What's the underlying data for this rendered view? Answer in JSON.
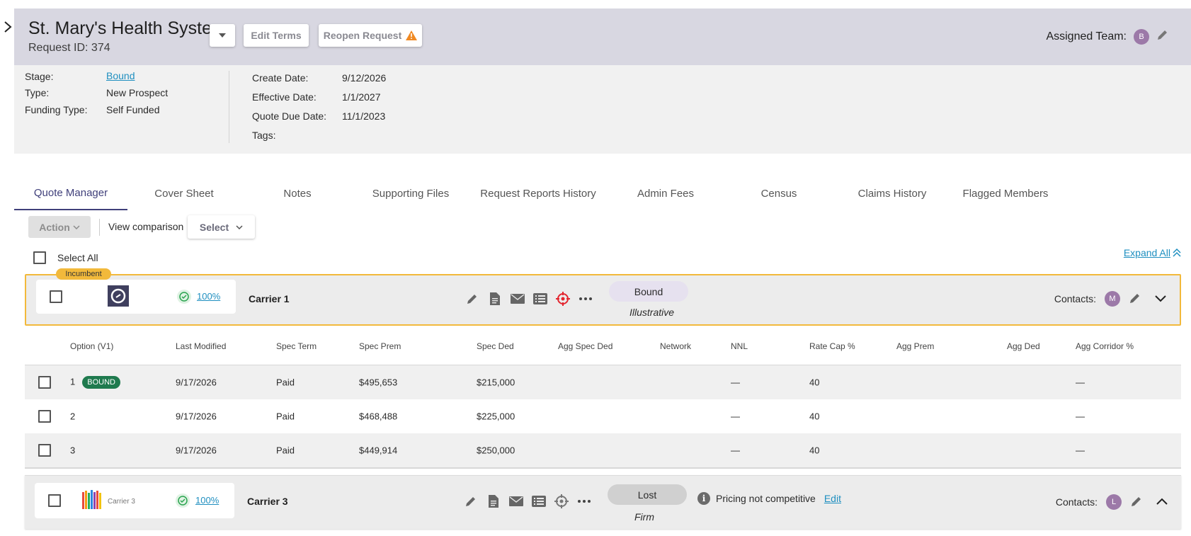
{
  "header": {
    "title": "St. Mary's Health System",
    "request_id": "Request ID: 374",
    "edit_terms": "Edit Terms",
    "reopen_request": "Reopen Request",
    "assigned_label": "Assigned Team:",
    "assigned_avatar": "B"
  },
  "info": {
    "stage_label": "Stage:",
    "stage_value": "Bound",
    "type_label": "Type:",
    "type_value": "New Prospect",
    "funding_label": "Funding Type:",
    "funding_value": "Self Funded",
    "create_label": "Create Date:",
    "create_value": "9/12/2026",
    "effective_label": "Effective Date:",
    "effective_value": "1/1/2027",
    "due_label": "Quote Due Date:",
    "due_value": "11/1/2023",
    "tags_label": "Tags:"
  },
  "tabs": [
    {
      "label": "Quote Manager"
    },
    {
      "label": "Cover Sheet"
    },
    {
      "label": "Notes"
    },
    {
      "label": "Supporting Files"
    },
    {
      "label": "Request Reports History"
    },
    {
      "label": "Admin Fees"
    },
    {
      "label": "Census"
    },
    {
      "label": "Claims History"
    },
    {
      "label": "Flagged Members"
    }
  ],
  "toolbar": {
    "action": "Action",
    "view_comparison": "View comparison",
    "select": "Select",
    "select_all": "Select All",
    "expand_all": "Expand All"
  },
  "carriers": [
    {
      "badge": "Incumbent",
      "percent": "100%",
      "name": "Carrier 1",
      "status": "Bound",
      "status_sub": "Illustrative",
      "contacts_label": "Contacts:",
      "contact_avatar": "M"
    },
    {
      "logo_text": "Carrier 3",
      "percent": "100%",
      "name": "Carrier 3",
      "status": "Lost",
      "status_sub": "Firm",
      "note": "Pricing not competitive",
      "edit": "Edit",
      "contacts_label": "Contacts:",
      "contact_avatar": "L"
    }
  ],
  "options_table": {
    "headers": [
      "Option (V1)",
      "Last Modified",
      "Spec Term",
      "Spec Prem",
      "Spec Ded",
      "Agg Spec Ded",
      "Network",
      "NNL",
      "Rate Cap %",
      "Agg Prem",
      "Agg Ded",
      "Agg Corridor %"
    ],
    "rows": [
      {
        "option": "1",
        "badge": "BOUND",
        "modified": "9/17/2026",
        "term": "Paid",
        "prem": "$495,653",
        "ded": "$215,000",
        "nnl": "—",
        "rate_cap": "40",
        "corridor": "—"
      },
      {
        "option": "2",
        "modified": "9/17/2026",
        "term": "Paid",
        "prem": "$468,488",
        "ded": "$225,000",
        "nnl": "—",
        "rate_cap": "40",
        "corridor": "—"
      },
      {
        "option": "3",
        "modified": "9/17/2026",
        "term": "Paid",
        "prem": "$449,914",
        "ded": "$250,000",
        "nnl": "—",
        "rate_cap": "40",
        "corridor": "—"
      }
    ]
  },
  "colors": {
    "header_bg": "#d8d7e1",
    "accent": "#3f3f7a",
    "link": "#1f8fc0",
    "incumbent": "#f2b93b",
    "bound_badge": "#1f7a4e",
    "bound_pill": "#e6e1ef",
    "lost_pill": "#d0d0d0",
    "target_active": "#e3262f"
  }
}
